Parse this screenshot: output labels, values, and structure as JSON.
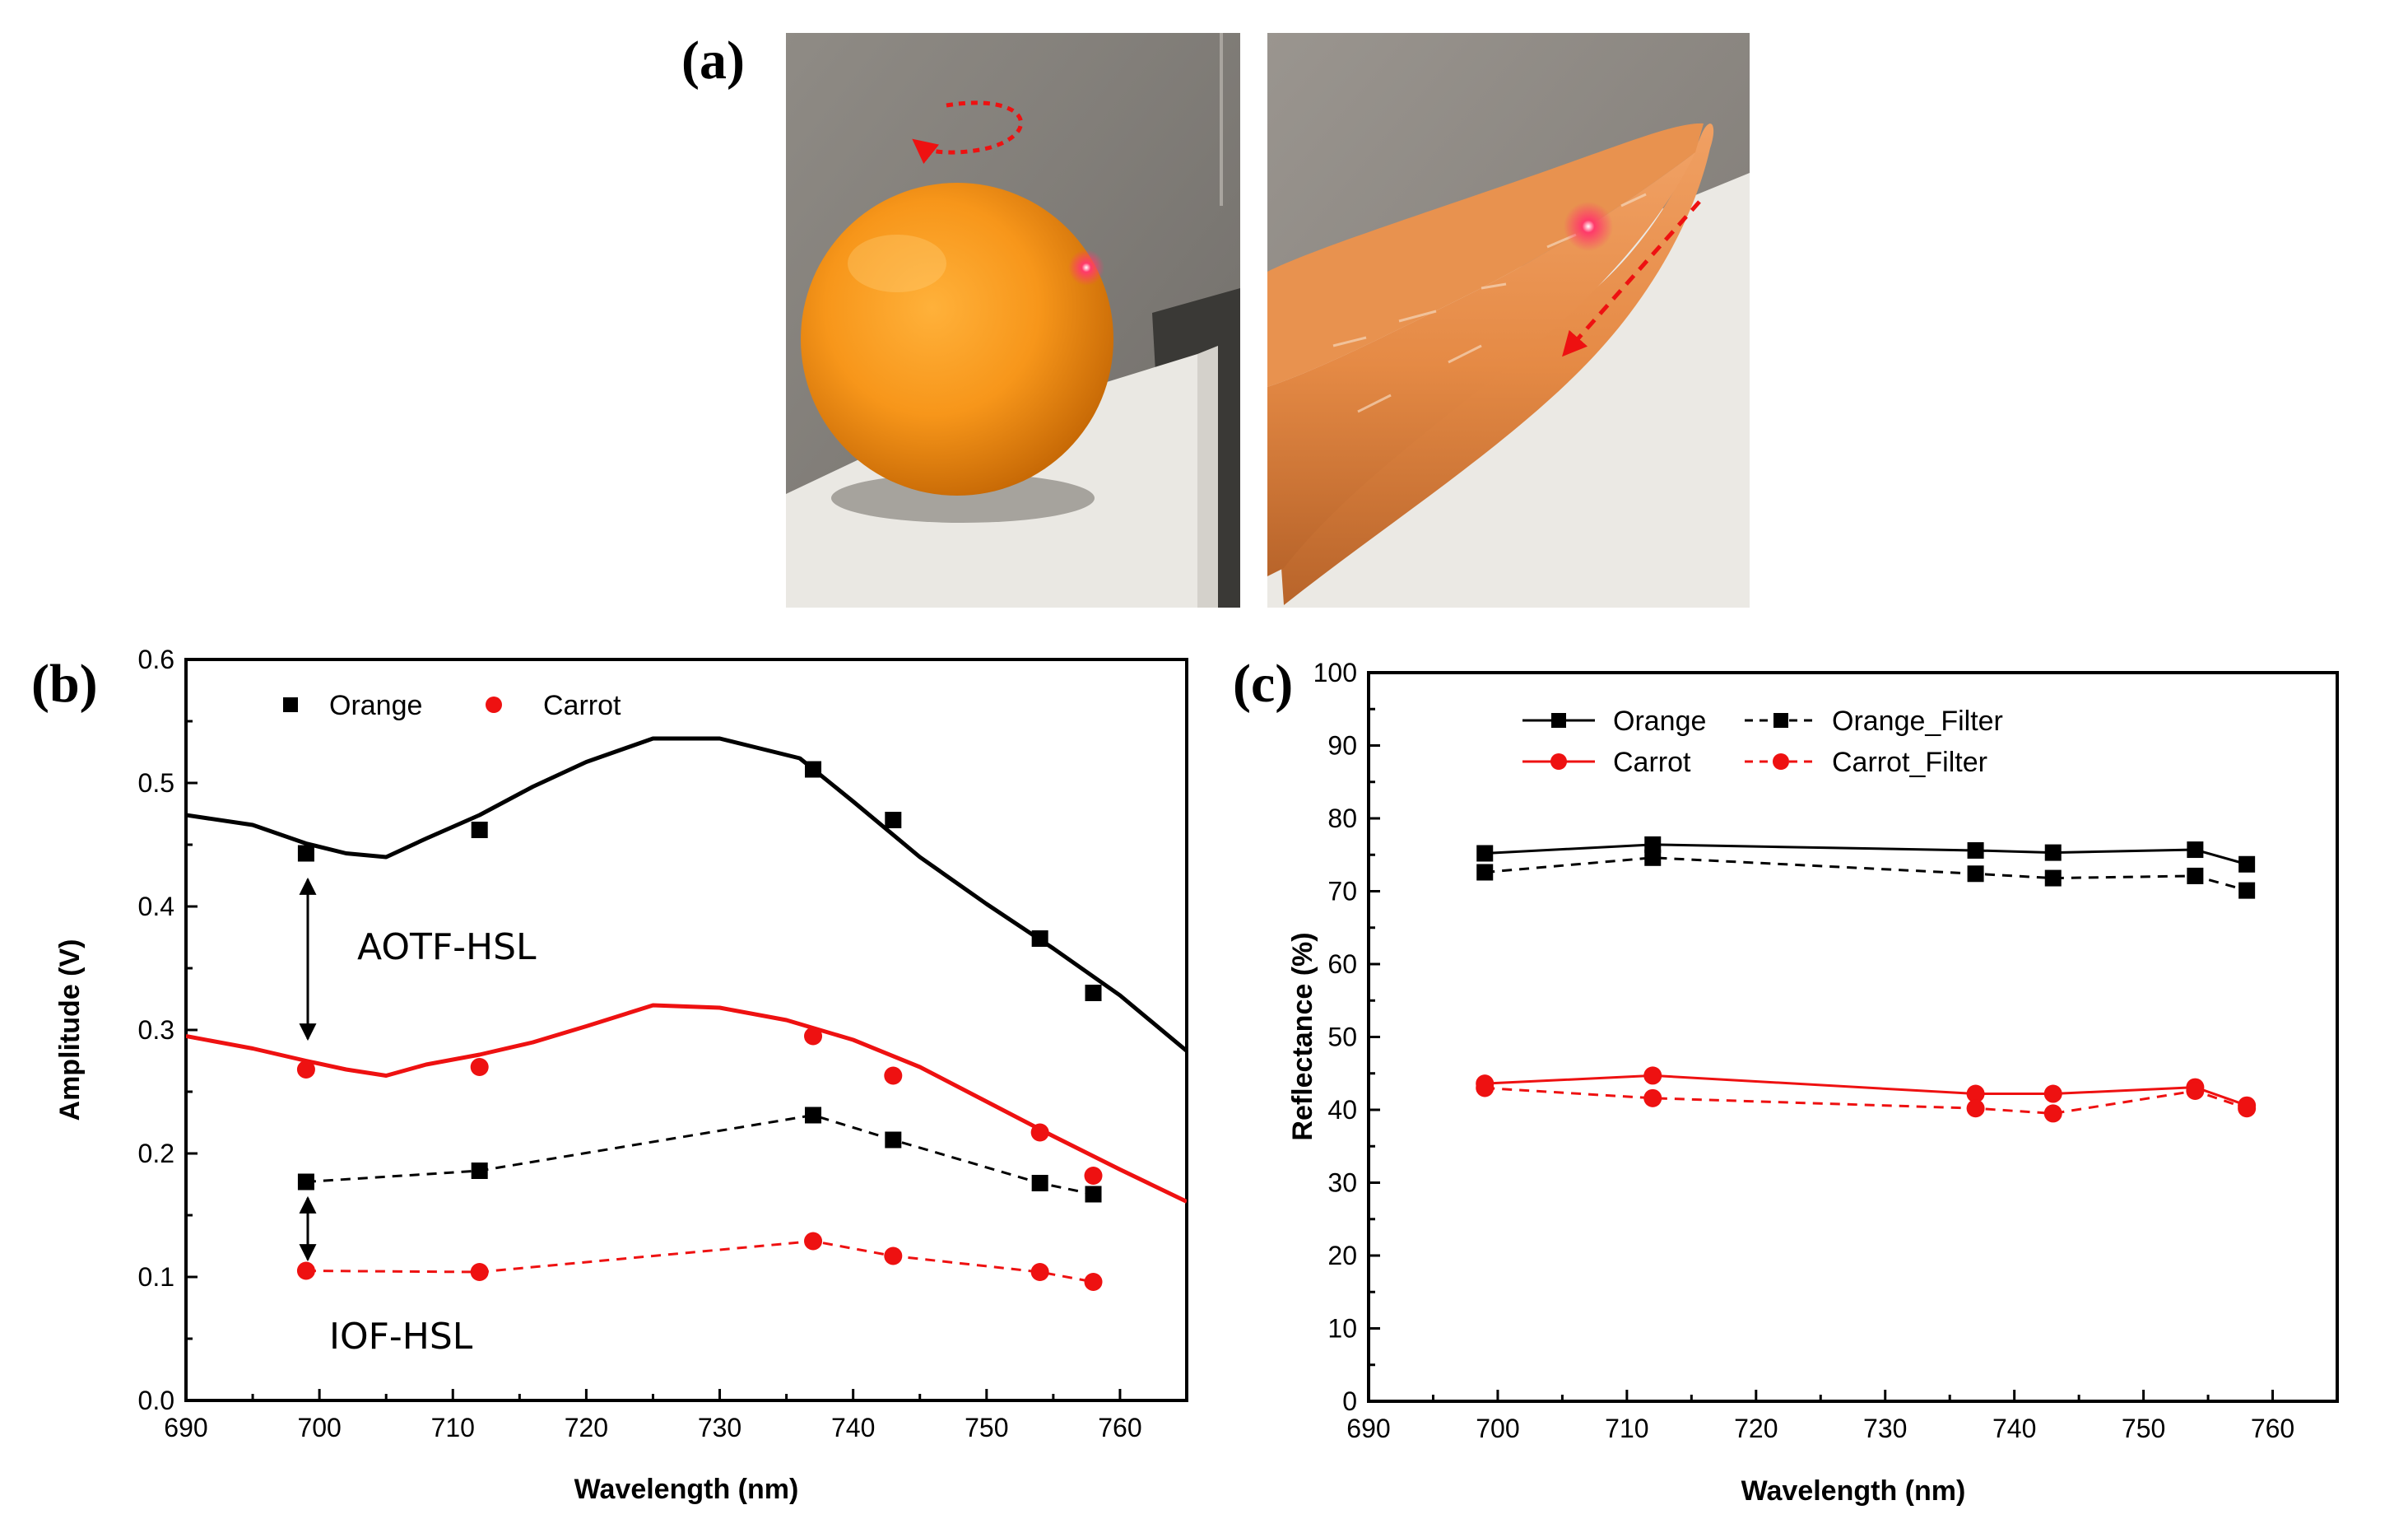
{
  "panel_labels": {
    "a": "(a)",
    "b": "(b)",
    "c": "(c)"
  },
  "photos": [
    {
      "name": "orange-photo",
      "subject": "orange"
    },
    {
      "name": "carrot-photo",
      "subject": "carrot"
    }
  ],
  "colors": {
    "black": "#000000",
    "red": "#ee1111"
  },
  "chart_data": [
    {
      "id": "b",
      "type": "line",
      "xlabel": "Wavelength (nm)",
      "ylabel": "Amplitude (V)",
      "xlim": [
        690,
        765
      ],
      "ylim": [
        0.0,
        0.6
      ],
      "xticks": [
        "690",
        "700",
        "710",
        "720",
        "730",
        "740",
        "750",
        "760"
      ],
      "yticks": [
        "0.0",
        "0.1",
        "0.2",
        "0.3",
        "0.4",
        "0.5",
        "0.6"
      ],
      "legend": [
        "Orange",
        "Carrot"
      ],
      "annotations": {
        "aotf": "AOTF-HSL",
        "iof": "IOF-HSL"
      },
      "series": [
        {
          "name": "Orange AOTF fit",
          "style": "solid",
          "color": "#000000",
          "marker": "none",
          "x": [
            690,
            695,
            699,
            702,
            705,
            708,
            712,
            716,
            720,
            725,
            730,
            733,
            736,
            740,
            745,
            750,
            755,
            760,
            765
          ],
          "y": [
            0.474,
            0.466,
            0.451,
            0.443,
            0.44,
            0.455,
            0.474,
            0.497,
            0.517,
            0.536,
            0.536,
            0.528,
            0.52,
            0.485,
            0.44,
            0.402,
            0.366,
            0.328,
            0.283
          ]
        },
        {
          "name": "Orange AOTF points",
          "style": "none",
          "color": "#000000",
          "marker": "square",
          "x": [
            699,
            712,
            737,
            743,
            754,
            758
          ],
          "y": [
            0.443,
            0.462,
            0.511,
            0.47,
            0.374,
            0.33
          ]
        },
        {
          "name": "Carrot AOTF fit",
          "style": "solid",
          "color": "#ee1111",
          "marker": "none",
          "x": [
            690,
            695,
            699,
            702,
            705,
            708,
            712,
            716,
            720,
            725,
            730,
            735,
            740,
            745,
            750,
            755,
            760,
            765
          ],
          "y": [
            0.295,
            0.285,
            0.275,
            0.268,
            0.263,
            0.272,
            0.28,
            0.29,
            0.303,
            0.32,
            0.318,
            0.308,
            0.292,
            0.27,
            0.242,
            0.214,
            0.187,
            0.161
          ]
        },
        {
          "name": "Carrot AOTF points",
          "style": "none",
          "color": "#ee1111",
          "marker": "circle",
          "x": [
            699,
            712,
            737,
            743,
            754,
            758
          ],
          "y": [
            0.268,
            0.27,
            0.295,
            0.263,
            0.217,
            0.182
          ]
        },
        {
          "name": "Orange IOF",
          "style": "dashed",
          "color": "#000000",
          "marker": "square",
          "x": [
            699,
            712,
            737,
            743,
            754,
            758
          ],
          "y": [
            0.177,
            0.186,
            0.231,
            0.211,
            0.176,
            0.167
          ]
        },
        {
          "name": "Carrot IOF",
          "style": "dashed",
          "color": "#ee1111",
          "marker": "circle",
          "x": [
            699,
            712,
            737,
            743,
            754,
            758
          ],
          "y": [
            0.105,
            0.104,
            0.129,
            0.117,
            0.104,
            0.096
          ]
        }
      ]
    },
    {
      "id": "c",
      "type": "line",
      "xlabel": "Wavelength (nm)",
      "ylabel": "Reflectance (%)",
      "xlim": [
        690,
        765
      ],
      "ylim": [
        0,
        100
      ],
      "xticks": [
        "690",
        "700",
        "710",
        "720",
        "730",
        "740",
        "750",
        "760"
      ],
      "yticks": [
        "0",
        "10",
        "20",
        "30",
        "40",
        "50",
        "60",
        "70",
        "80",
        "90",
        "100"
      ],
      "legend": [
        "Orange",
        "Orange_Filter",
        "Carrot",
        "Carrot_Filter"
      ],
      "series": [
        {
          "name": "Orange",
          "style": "solid",
          "color": "#000000",
          "marker": "square",
          "x": [
            699,
            712,
            737,
            743,
            754,
            758
          ],
          "y": [
            75.2,
            76.4,
            75.6,
            75.3,
            75.7,
            73.7
          ]
        },
        {
          "name": "Orange_Filter",
          "style": "dashed",
          "color": "#000000",
          "marker": "square",
          "x": [
            699,
            712,
            737,
            743,
            754,
            758
          ],
          "y": [
            72.6,
            74.6,
            72.4,
            71.8,
            72.1,
            70.1
          ]
        },
        {
          "name": "Carrot",
          "style": "solid",
          "color": "#ee1111",
          "marker": "circle",
          "x": [
            699,
            712,
            737,
            743,
            754,
            758
          ],
          "y": [
            43.6,
            44.7,
            42.2,
            42.2,
            43.1,
            40.6
          ]
        },
        {
          "name": "Carrot_Filter",
          "style": "dashed",
          "color": "#ee1111",
          "marker": "circle",
          "x": [
            699,
            712,
            737,
            743,
            754,
            758
          ],
          "y": [
            43.0,
            41.6,
            40.2,
            39.5,
            42.6,
            40.2
          ]
        }
      ]
    }
  ]
}
